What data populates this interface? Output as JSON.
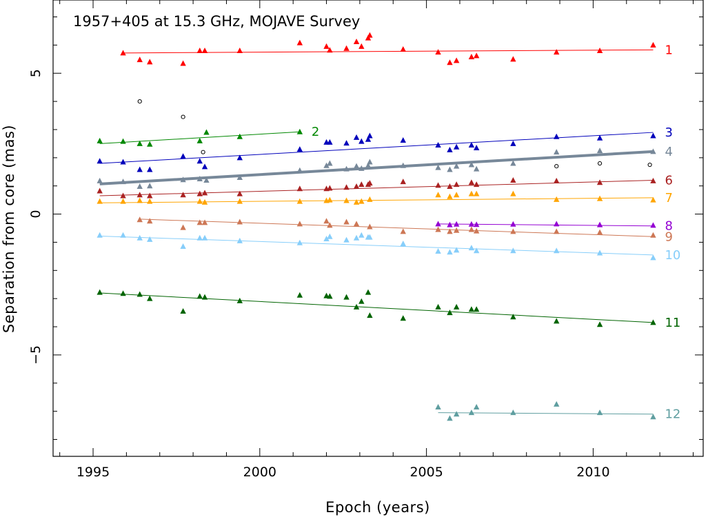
{
  "chart_data": {
    "type": "scatter",
    "title": "1957+405 at 15.3 GHz, MOJAVE Survey",
    "xlabel": "Epoch (years)",
    "ylabel": "Separation from core (mas)",
    "xlim": [
      1993.8,
      2013.3
    ],
    "ylim": [
      -8.6,
      7.6
    ],
    "xticks": [
      1995,
      2000,
      2005,
      2010
    ],
    "yticks": [
      5,
      0,
      -5
    ],
    "ytick_labels": [
      "5",
      "0",
      "−5"
    ],
    "unassigned_points": [
      [
        1996.4,
        4.0
      ],
      [
        1997.7,
        3.45
      ],
      [
        1998.3,
        2.2
      ],
      [
        2008.9,
        1.7
      ],
      [
        2010.2,
        1.8
      ],
      [
        2011.7,
        1.75
      ]
    ],
    "series": [
      {
        "name": "1",
        "color": "#ff0000",
        "fit": [
          [
            1995.9,
            5.72
          ],
          [
            2011.8,
            5.83
          ]
        ],
        "fit_width": 1,
        "points": [
          [
            1995.9,
            5.72
          ],
          [
            1996.4,
            5.48
          ],
          [
            1996.7,
            5.4
          ],
          [
            1997.7,
            5.35
          ],
          [
            1998.2,
            5.8
          ],
          [
            1998.35,
            5.8
          ],
          [
            1999.4,
            5.8
          ],
          [
            2001.2,
            6.08
          ],
          [
            2002.0,
            5.95
          ],
          [
            2002.1,
            5.82
          ],
          [
            2002.6,
            5.88
          ],
          [
            2002.9,
            6.12
          ],
          [
            2003.05,
            5.95
          ],
          [
            2003.25,
            6.25
          ],
          [
            2003.3,
            6.35
          ],
          [
            2004.3,
            5.85
          ],
          [
            2005.35,
            5.75
          ],
          [
            2005.7,
            5.38
          ],
          [
            2005.9,
            5.45
          ],
          [
            2006.35,
            5.58
          ],
          [
            2006.5,
            5.62
          ],
          [
            2007.6,
            5.5
          ],
          [
            2008.9,
            5.75
          ],
          [
            2010.2,
            5.8
          ],
          [
            2011.8,
            6.0
          ]
        ]
      },
      {
        "name": "2",
        "color": "#008800",
        "fit": [
          [
            1995.2,
            2.5
          ],
          [
            2001.2,
            2.92
          ]
        ],
        "fit_width": 1,
        "points": [
          [
            1995.2,
            2.6
          ],
          [
            1995.9,
            2.58
          ],
          [
            1996.4,
            2.5
          ],
          [
            1996.7,
            2.48
          ],
          [
            1998.2,
            2.6
          ],
          [
            1998.4,
            2.9
          ],
          [
            1999.4,
            2.75
          ],
          [
            2001.2,
            2.92
          ]
        ]
      },
      {
        "name": "3",
        "color": "#0000bb",
        "fit": [
          [
            1995.2,
            1.8
          ],
          [
            2011.8,
            2.9
          ]
        ],
        "fit_width": 1,
        "points": [
          [
            1995.2,
            1.88
          ],
          [
            1995.9,
            1.85
          ],
          [
            1996.4,
            1.58
          ],
          [
            1996.7,
            1.58
          ],
          [
            1997.7,
            2.05
          ],
          [
            1998.2,
            1.88
          ],
          [
            1998.35,
            1.68
          ],
          [
            1999.4,
            2.0
          ],
          [
            2001.2,
            2.3
          ],
          [
            2002.0,
            2.55
          ],
          [
            2002.1,
            2.55
          ],
          [
            2002.6,
            2.52
          ],
          [
            2002.9,
            2.72
          ],
          [
            2003.05,
            2.58
          ],
          [
            2003.25,
            2.65
          ],
          [
            2003.3,
            2.78
          ],
          [
            2004.3,
            2.62
          ],
          [
            2005.35,
            2.45
          ],
          [
            2005.7,
            2.28
          ],
          [
            2005.9,
            2.38
          ],
          [
            2006.35,
            2.45
          ],
          [
            2006.5,
            2.35
          ],
          [
            2007.6,
            2.5
          ],
          [
            2008.9,
            2.75
          ],
          [
            2010.2,
            2.7
          ],
          [
            2011.8,
            2.78
          ]
        ]
      },
      {
        "name": "4",
        "color": "#778899",
        "fit": [
          [
            1995.2,
            1.07
          ],
          [
            2011.8,
            2.22
          ]
        ],
        "fit_width": 4,
        "points": [
          [
            1995.2,
            1.18
          ],
          [
            1995.9,
            1.15
          ],
          [
            1996.4,
            0.98
          ],
          [
            1996.7,
            1.0
          ],
          [
            1997.7,
            1.22
          ],
          [
            1998.2,
            1.25
          ],
          [
            1998.4,
            1.2
          ],
          [
            1999.4,
            1.3
          ],
          [
            2001.2,
            1.55
          ],
          [
            2002.0,
            1.72
          ],
          [
            2002.1,
            1.8
          ],
          [
            2002.6,
            1.6
          ],
          [
            2002.9,
            1.7
          ],
          [
            2003.05,
            1.62
          ],
          [
            2003.25,
            1.72
          ],
          [
            2003.3,
            1.85
          ],
          [
            2004.3,
            1.72
          ],
          [
            2005.35,
            1.65
          ],
          [
            2005.7,
            1.58
          ],
          [
            2005.9,
            1.7
          ],
          [
            2006.35,
            1.75
          ],
          [
            2006.5,
            1.6
          ],
          [
            2007.6,
            1.8
          ],
          [
            2008.9,
            2.2
          ],
          [
            2010.2,
            2.25
          ],
          [
            2011.8,
            2.22
          ]
        ]
      },
      {
        "name": "6",
        "color": "#aa2222",
        "fit": [
          [
            1995.2,
            0.65
          ],
          [
            2011.8,
            1.2
          ]
        ],
        "fit_width": 1,
        "points": [
          [
            1995.2,
            0.82
          ],
          [
            1995.9,
            0.65
          ],
          [
            1996.4,
            0.68
          ],
          [
            1996.7,
            0.65
          ],
          [
            1997.7,
            0.68
          ],
          [
            1998.2,
            0.72
          ],
          [
            1998.35,
            0.75
          ],
          [
            1999.4,
            0.72
          ],
          [
            2001.2,
            0.9
          ],
          [
            2002.0,
            0.9
          ],
          [
            2002.1,
            0.92
          ],
          [
            2002.6,
            0.95
          ],
          [
            2002.9,
            0.98
          ],
          [
            2003.05,
            1.05
          ],
          [
            2003.25,
            1.05
          ],
          [
            2003.3,
            1.1
          ],
          [
            2004.3,
            1.15
          ],
          [
            2005.35,
            1.02
          ],
          [
            2005.7,
            0.98
          ],
          [
            2005.9,
            1.05
          ],
          [
            2006.35,
            1.12
          ],
          [
            2006.5,
            1.05
          ],
          [
            2007.6,
            1.2
          ],
          [
            2008.9,
            1.18
          ],
          [
            2010.2,
            1.12
          ],
          [
            2011.8,
            1.18
          ]
        ]
      },
      {
        "name": "7",
        "color": "#ffa500",
        "fit": [
          [
            1995.2,
            0.4
          ],
          [
            2011.8,
            0.58
          ]
        ],
        "fit_width": 1,
        "points": [
          [
            1995.2,
            0.45
          ],
          [
            1995.9,
            0.45
          ],
          [
            1996.4,
            0.48
          ],
          [
            1996.7,
            0.45
          ],
          [
            1998.2,
            0.45
          ],
          [
            1998.35,
            0.42
          ],
          [
            1999.4,
            0.45
          ],
          [
            2001.2,
            0.45
          ],
          [
            2002.0,
            0.48
          ],
          [
            2002.1,
            0.5
          ],
          [
            2002.6,
            0.48
          ],
          [
            2002.9,
            0.42
          ],
          [
            2003.05,
            0.45
          ],
          [
            2003.3,
            0.52
          ],
          [
            2005.35,
            0.68
          ],
          [
            2005.7,
            0.62
          ],
          [
            2005.9,
            0.68
          ],
          [
            2006.35,
            0.72
          ],
          [
            2006.5,
            0.72
          ],
          [
            2007.6,
            0.72
          ],
          [
            2008.9,
            0.52
          ],
          [
            2010.2,
            0.55
          ],
          [
            2011.8,
            0.5
          ]
        ]
      },
      {
        "name": "8",
        "color": "#9400d3",
        "fit": [
          [
            2005.35,
            -0.35
          ],
          [
            2011.8,
            -0.42
          ]
        ],
        "fit_width": 1,
        "points": [
          [
            2005.35,
            -0.35
          ],
          [
            2005.7,
            -0.38
          ],
          [
            2005.9,
            -0.36
          ],
          [
            2006.35,
            -0.36
          ],
          [
            2006.5,
            -0.37
          ],
          [
            2007.6,
            -0.36
          ],
          [
            2008.9,
            -0.35
          ],
          [
            2010.2,
            -0.38
          ],
          [
            2011.8,
            -0.4
          ]
        ]
      },
      {
        "name": "9",
        "color": "#cd7755",
        "fit": [
          [
            1996.4,
            -0.18
          ],
          [
            2011.8,
            -0.8
          ]
        ],
        "fit_width": 1,
        "points": [
          [
            1996.4,
            -0.2
          ],
          [
            1996.7,
            -0.25
          ],
          [
            1997.7,
            -0.48
          ],
          [
            1998.2,
            -0.3
          ],
          [
            1998.35,
            -0.3
          ],
          [
            1999.4,
            -0.28
          ],
          [
            2001.2,
            -0.35
          ],
          [
            2002.0,
            -0.25
          ],
          [
            2002.1,
            -0.4
          ],
          [
            2002.6,
            -0.28
          ],
          [
            2002.9,
            -0.35
          ],
          [
            2003.3,
            -0.45
          ],
          [
            2004.3,
            -0.62
          ],
          [
            2005.35,
            -0.55
          ],
          [
            2005.7,
            -0.62
          ],
          [
            2005.9,
            -0.58
          ],
          [
            2006.35,
            -0.55
          ],
          [
            2006.5,
            -0.6
          ],
          [
            2007.6,
            -0.62
          ],
          [
            2008.9,
            -0.62
          ],
          [
            2010.2,
            -0.65
          ],
          [
            2011.8,
            -0.75
          ]
        ]
      },
      {
        "name": "10",
        "color": "#87cefa",
        "fit": [
          [
            1995.2,
            -0.78
          ],
          [
            2011.8,
            -1.45
          ]
        ],
        "fit_width": 1,
        "points": [
          [
            1995.2,
            -0.75
          ],
          [
            1995.9,
            -0.75
          ],
          [
            1996.4,
            -0.85
          ],
          [
            1996.7,
            -0.9
          ],
          [
            1997.7,
            -1.15
          ],
          [
            1998.2,
            -0.85
          ],
          [
            1998.35,
            -0.85
          ],
          [
            1999.4,
            -0.95
          ],
          [
            2001.2,
            -1.02
          ],
          [
            2002.0,
            -0.88
          ],
          [
            2002.1,
            -0.8
          ],
          [
            2002.6,
            -0.92
          ],
          [
            2002.9,
            -0.85
          ],
          [
            2003.05,
            -0.75
          ],
          [
            2003.25,
            -0.82
          ],
          [
            2003.3,
            -0.82
          ],
          [
            2004.3,
            -1.05
          ],
          [
            2005.35,
            -1.32
          ],
          [
            2005.7,
            -1.35
          ],
          [
            2005.9,
            -1.28
          ],
          [
            2006.35,
            -1.2
          ],
          [
            2006.5,
            -1.3
          ],
          [
            2007.6,
            -1.3
          ],
          [
            2008.9,
            -1.3
          ],
          [
            2010.2,
            -1.38
          ],
          [
            2011.8,
            -1.55
          ]
        ]
      },
      {
        "name": "11",
        "color": "#006400",
        "fit": [
          [
            1995.2,
            -2.8
          ],
          [
            2011.8,
            -3.85
          ]
        ],
        "fit_width": 1,
        "points": [
          [
            1995.2,
            -2.78
          ],
          [
            1995.9,
            -2.82
          ],
          [
            1996.4,
            -2.85
          ],
          [
            1996.7,
            -3.0
          ],
          [
            1997.7,
            -3.45
          ],
          [
            1998.2,
            -2.92
          ],
          [
            1998.35,
            -2.95
          ],
          [
            1999.4,
            -3.08
          ],
          [
            2001.2,
            -2.88
          ],
          [
            2002.0,
            -2.9
          ],
          [
            2002.1,
            -2.92
          ],
          [
            2002.6,
            -2.95
          ],
          [
            2002.9,
            -3.3
          ],
          [
            2003.05,
            -3.1
          ],
          [
            2003.25,
            -2.78
          ],
          [
            2003.3,
            -3.6
          ],
          [
            2004.3,
            -3.7
          ],
          [
            2005.35,
            -3.3
          ],
          [
            2005.7,
            -3.5
          ],
          [
            2005.9,
            -3.3
          ],
          [
            2006.35,
            -3.38
          ],
          [
            2006.5,
            -3.38
          ],
          [
            2007.6,
            -3.65
          ],
          [
            2008.9,
            -3.8
          ],
          [
            2010.2,
            -3.92
          ],
          [
            2011.8,
            -3.85
          ]
        ]
      },
      {
        "name": "12",
        "color": "#5f9ea0",
        "fit": [
          [
            2005.35,
            -7.05
          ],
          [
            2011.8,
            -7.1
          ]
        ],
        "fit_width": 1,
        "points": [
          [
            2005.35,
            -6.85
          ],
          [
            2005.7,
            -7.25
          ],
          [
            2005.9,
            -7.1
          ],
          [
            2006.35,
            -7.05
          ],
          [
            2006.5,
            -6.85
          ],
          [
            2007.6,
            -7.05
          ],
          [
            2008.9,
            -6.75
          ],
          [
            2010.2,
            -7.05
          ],
          [
            2011.8,
            -7.2
          ]
        ]
      }
    ]
  }
}
